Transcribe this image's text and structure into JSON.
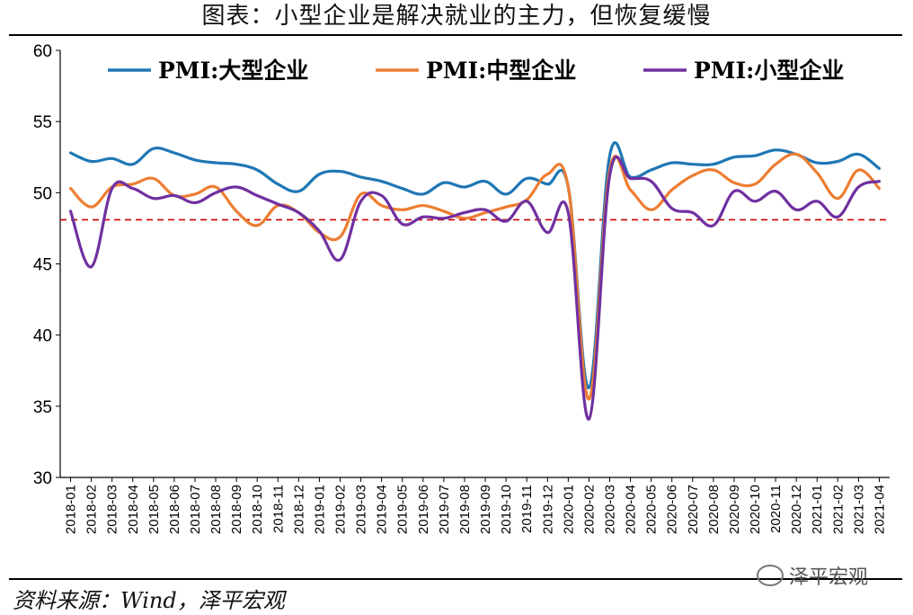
{
  "title": "图表：小型企业是解决就业的主力，但恢复缓慢",
  "source": "资料来源：Wind，泽平宏观",
  "watermark": "泽平宏观",
  "chart_data": {
    "type": "line",
    "title": "图表：小型企业是解决就业的主力，但恢复缓慢",
    "xlabel": "",
    "ylabel": "",
    "ylim": [
      30,
      60
    ],
    "yticks": [
      30,
      35,
      40,
      45,
      50,
      55,
      60
    ],
    "grid": false,
    "legend_position": "top",
    "reference_line": {
      "value": 48.1,
      "style": "dashed",
      "color": "#cc0000"
    },
    "categories": [
      "2018-01",
      "2018-02",
      "2018-03",
      "2018-04",
      "2018-05",
      "2018-06",
      "2018-07",
      "2018-08",
      "2018-09",
      "2018-10",
      "2018-11",
      "2018-12",
      "2019-01",
      "2019-02",
      "2019-03",
      "2019-04",
      "2019-05",
      "2019-06",
      "2019-07",
      "2019-08",
      "2019-09",
      "2019-10",
      "2019-11",
      "2019-12",
      "2020-01",
      "2020-02",
      "2020-03",
      "2020-04",
      "2020-05",
      "2020-06",
      "2020-07",
      "2020-08",
      "2020-09",
      "2020-10",
      "2020-11",
      "2020-12",
      "2021-01",
      "2021-02",
      "2021-03",
      "2021-04"
    ],
    "series": [
      {
        "name": "PMI:大型企业",
        "color": "#1f77b4",
        "values": [
          52.8,
          52.2,
          52.4,
          52.0,
          53.1,
          52.8,
          52.3,
          52.1,
          52.0,
          51.6,
          50.6,
          50.1,
          51.3,
          51.5,
          51.1,
          50.8,
          50.3,
          49.9,
          50.7,
          50.4,
          50.8,
          49.9,
          51.0,
          50.6,
          50.4,
          36.3,
          52.6,
          51.1,
          51.6,
          52.1,
          52.0,
          52.0,
          52.5,
          52.6,
          53.0,
          52.7,
          52.1,
          52.2,
          52.7,
          51.7
        ]
      },
      {
        "name": "PMI:中型企业",
        "color": "#ed7d31",
        "values": [
          50.3,
          49.0,
          50.4,
          50.6,
          51.0,
          49.8,
          49.9,
          50.4,
          48.7,
          47.7,
          49.1,
          48.6,
          47.2,
          46.9,
          49.9,
          49.1,
          48.8,
          49.1,
          48.7,
          48.2,
          48.6,
          49.0,
          49.5,
          51.3,
          50.4,
          35.5,
          51.6,
          50.2,
          48.8,
          50.2,
          51.2,
          51.6,
          50.7,
          50.6,
          52.0,
          52.7,
          51.4,
          49.6,
          51.6,
          50.3
        ]
      },
      {
        "name": "PMI:小型企业",
        "color": "#7030a0",
        "values": [
          48.7,
          44.8,
          50.3,
          50.3,
          49.6,
          49.8,
          49.3,
          50.0,
          50.4,
          49.8,
          49.2,
          48.6,
          47.3,
          45.3,
          49.4,
          49.8,
          47.8,
          48.3,
          48.2,
          48.6,
          48.8,
          48.0,
          49.4,
          47.2,
          48.6,
          34.1,
          51.2,
          51.0,
          50.8,
          48.9,
          48.6,
          47.7,
          50.1,
          49.4,
          50.1,
          48.8,
          49.4,
          48.3,
          50.4,
          50.8
        ]
      }
    ]
  }
}
